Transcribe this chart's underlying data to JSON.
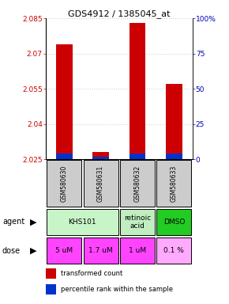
{
  "title": "GDS4912 / 1385045_at",
  "samples": [
    "GSM580630",
    "GSM580631",
    "GSM580632",
    "GSM580633"
  ],
  "transformed_counts": [
    2.074,
    2.028,
    2.083,
    2.057
  ],
  "bar_base": 2.025,
  "ylim_left": [
    2.025,
    2.085
  ],
  "ylim_right": [
    0,
    100
  ],
  "yticks_left": [
    2.025,
    2.04,
    2.055,
    2.07,
    2.085
  ],
  "yticks_right": [
    0,
    25,
    50,
    75,
    100
  ],
  "ytick_labels_left": [
    "2.025",
    "2.04",
    "2.055",
    "2.07",
    "2.085"
  ],
  "ytick_labels_right": [
    "0",
    "25",
    "50",
    "75",
    "100%"
  ],
  "blue_bar_values": [
    4,
    2,
    4,
    4
  ],
  "agent_spans": [
    [
      0,
      2,
      "KHS101",
      "#c8f5c8"
    ],
    [
      2,
      3,
      "retinoic\nacid",
      "#c0eec0"
    ],
    [
      3,
      4,
      "DMSO",
      "#22cc22"
    ]
  ],
  "doses": [
    "5 uM",
    "1.7 uM",
    "1 uM",
    "0.1 %"
  ],
  "dose_colors_list": [
    "#ff44ff",
    "#ff44ff",
    "#ff44ff",
    "#ffaaff"
  ],
  "sample_bg": "#cccccc",
  "bar_color_red": "#cc0000",
  "bar_color_blue": "#0033cc",
  "grid_color": "#999999",
  "left_axis_color": "#cc0000",
  "right_axis_color": "#0000bb",
  "title_color": "#000000"
}
